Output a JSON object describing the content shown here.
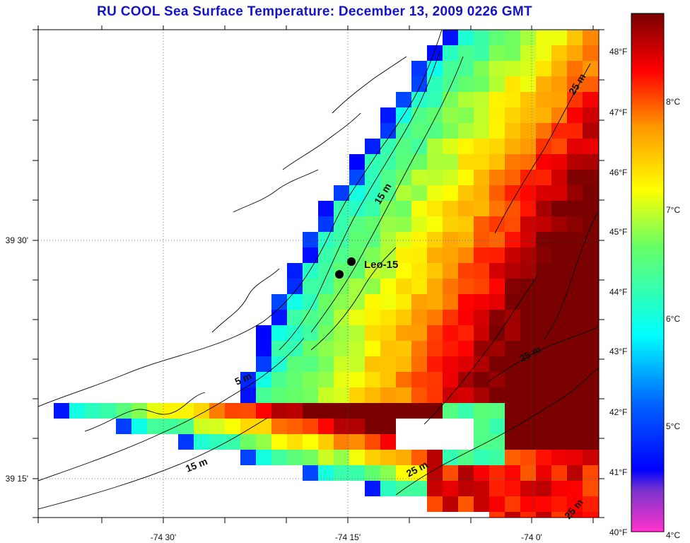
{
  "title": "RU COOL  Sea Surface Temperature:  December 13, 2009 0226 GMT",
  "axes": {
    "x_ticks": [
      "-74 30'",
      "-74 15'",
      "-74 0'"
    ],
    "y_ticks": [
      "39 30'",
      "39 15'"
    ]
  },
  "station": {
    "label": "Leo-15"
  },
  "contours": {
    "labels": [
      "5 m",
      "15 m",
      "15 m",
      "25 m",
      "25 m",
      "25 m",
      "25 m"
    ]
  },
  "colorbar": {
    "fahrenheit_labels": [
      "48°F",
      "47°F",
      "46°F",
      "45°F",
      "44°F",
      "43°F",
      "42°F",
      "41°F",
      "40°F"
    ],
    "celsius_labels": [
      "8°C",
      "7°C",
      "6°C",
      "5°C",
      "4°C"
    ],
    "colors": [
      "#ff33cc",
      "#7a33cc",
      "#0000ff",
      "#00ffff",
      "#ffff00",
      "#ff8000",
      "#ff0000",
      "#7a0000"
    ]
  }
}
